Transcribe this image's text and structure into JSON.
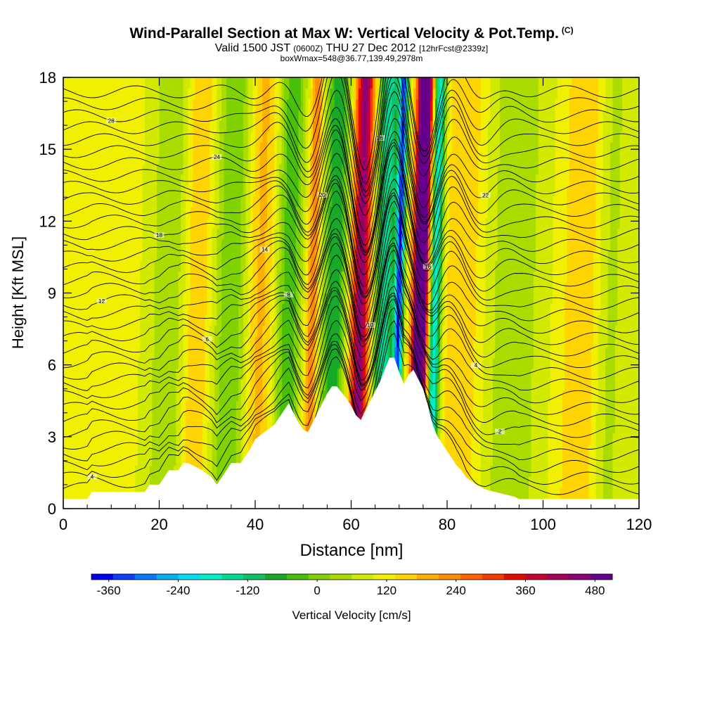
{
  "title": {
    "main": "Wind-Parallel Section at Max W: Vertical Velocity & Pot.Temp.",
    "corner": "(C)",
    "valid_a": "Valid 1500 JST",
    "valid_utc": "(0600Z)",
    "valid_b": "THU 27 Dec 2012",
    "forecast": "[12hrFcst@2339z]",
    "box_info": "boxWmax=548@36.77,139.49,2978m"
  },
  "chart_data": {
    "type": "heatmap",
    "xlabel": "Distance [nm]",
    "ylabel": "Height [Kft MSL]",
    "xlim": [
      0,
      120
    ],
    "ylim": [
      0,
      18
    ],
    "x_ticks": [
      "0",
      "20",
      "40",
      "60",
      "80",
      "100",
      "120"
    ],
    "y_ticks": [
      "0",
      "3",
      "6",
      "9",
      "12",
      "15",
      "18"
    ],
    "colorbar": {
      "label": "Vertical Velocity [cm/s]",
      "tick_labels": [
        "-360",
        "-240",
        "-120",
        "0",
        "120",
        "240",
        "360",
        "480"
      ],
      "tick_values": [
        -360,
        -240,
        -120,
        0,
        120,
        240,
        360,
        480
      ],
      "min": -390,
      "max": 510,
      "step": 30,
      "colors": [
        "#0000f0",
        "#0a3ef8",
        "#0a78f6",
        "#04aef2",
        "#00dcf2",
        "#00f0c8",
        "#00dc94",
        "#10c064",
        "#16aa28",
        "#48c00a",
        "#80d200",
        "#aadc00",
        "#d2ea00",
        "#f0f000",
        "#ffd400",
        "#ffb000",
        "#ff8c00",
        "#ff6400",
        "#f83c00",
        "#e40a00",
        "#c80032",
        "#a8005a",
        "#8c0078",
        "#66008c"
      ]
    },
    "background_w_color": "#48c00a",
    "plumes": [
      {
        "x": 4,
        "w": 3.5,
        "value": 20
      },
      {
        "x": 13,
        "w": 3,
        "value": 10
      },
      {
        "x": 22,
        "w": 3.5,
        "value": -60
      },
      {
        "x": 28,
        "w": 3,
        "value": 60
      },
      {
        "x": 35,
        "w": 3.5,
        "value": -90
      },
      {
        "x": 41,
        "w": 3,
        "value": 70
      },
      {
        "x": 47,
        "w": 2.5,
        "value": -120
      },
      {
        "x": 52,
        "w": 1.3,
        "value": 120
      },
      {
        "x": 56.5,
        "w": 2.5,
        "value": -150
      },
      {
        "x": 62,
        "w": 2,
        "value": 280
      },
      {
        "x": 67,
        "w": 2.2,
        "value": -200
      },
      {
        "x": 70,
        "w": 0.9,
        "value": -330
      },
      {
        "x": 74.5,
        "w": 1.6,
        "value": 470
      },
      {
        "x": 77.5,
        "w": 1.3,
        "value": -250
      },
      {
        "x": 83,
        "w": 4,
        "value": 60
      },
      {
        "x": 94,
        "w": 5,
        "value": -60
      },
      {
        "x": 108,
        "w": 4,
        "value": 60
      },
      {
        "x": 114,
        "w": 3,
        "value": -40
      }
    ],
    "terrain": {
      "x": [
        0,
        5,
        6,
        17,
        18,
        20,
        21,
        22,
        24,
        25,
        26,
        29,
        31,
        32,
        33,
        34,
        35,
        37,
        38,
        39,
        40,
        42,
        44,
        45,
        46,
        47,
        48,
        49,
        50,
        51,
        52,
        53,
        55,
        56,
        57,
        59,
        60,
        61,
        62,
        64,
        66,
        67,
        68,
        69,
        70,
        71,
        72,
        73,
        74,
        75,
        76,
        77,
        78,
        79,
        80,
        81,
        82,
        83,
        84,
        86,
        88,
        90,
        92,
        94,
        95,
        96,
        120
      ],
      "y": [
        0.4,
        0.4,
        0.7,
        0.7,
        1.0,
        1.0,
        1.3,
        1.6,
        1.6,
        1.9,
        1.9,
        1.6,
        1.3,
        1.0,
        1.3,
        1.6,
        1.9,
        1.9,
        2.2,
        2.5,
        2.9,
        3.2,
        3.5,
        3.8,
        4.1,
        4.4,
        4.0,
        3.6,
        3.3,
        3.2,
        3.6,
        4.0,
        4.8,
        5.1,
        5.1,
        4.6,
        4.3,
        3.9,
        3.7,
        4.5,
        5.3,
        5.8,
        6.3,
        6.3,
        5.7,
        5.2,
        5.6,
        5.8,
        5.4,
        5.0,
        4.3,
        3.5,
        3.0,
        2.7,
        2.4,
        2.1,
        1.8,
        1.6,
        1.3,
        1.0,
        0.8,
        0.7,
        0.6,
        0.5,
        0.4,
        0.4,
        0.4
      ]
    },
    "theta_contours": [
      {
        "z": 0.45,
        "label": "4"
      },
      {
        "z": 0.9
      },
      {
        "z": 1.4
      },
      {
        "z": 1.9
      },
      {
        "z": 2.4
      },
      {
        "z": 2.9,
        "label": "2"
      },
      {
        "z": 3.4
      },
      {
        "z": 3.9
      },
      {
        "z": 4.4
      },
      {
        "z": 4.9
      },
      {
        "z": 5.4,
        "label": "4"
      },
      {
        "z": 5.9
      },
      {
        "z": 6.4,
        "label": "6"
      },
      {
        "z": 6.9,
        "label": "8"
      },
      {
        "z": 7.4,
        "label": "10"
      },
      {
        "z": 7.9
      },
      {
        "z": 8.4,
        "label": "12"
      },
      {
        "z": 8.9
      },
      {
        "z": 9.4,
        "label": "14"
      },
      {
        "z": 9.9
      },
      {
        "z": 10.4,
        "label": "16"
      },
      {
        "z": 10.9
      },
      {
        "z": 11.4,
        "label": "18"
      },
      {
        "z": 11.9
      },
      {
        "z": 12.4,
        "label": "20"
      },
      {
        "z": 12.9
      },
      {
        "z": 13.4,
        "label": "22"
      },
      {
        "z": 13.9
      },
      {
        "z": 14.4,
        "label": "24"
      },
      {
        "z": 14.9
      },
      {
        "z": 15.4,
        "label": "26"
      },
      {
        "z": 15.9
      },
      {
        "z": 16.4,
        "label": "28"
      },
      {
        "z": 16.9
      },
      {
        "z": 17.4
      }
    ],
    "wave": {
      "center_x": 66,
      "half_width": 16,
      "amplitude": 2.4,
      "slope": 0.5
    }
  }
}
